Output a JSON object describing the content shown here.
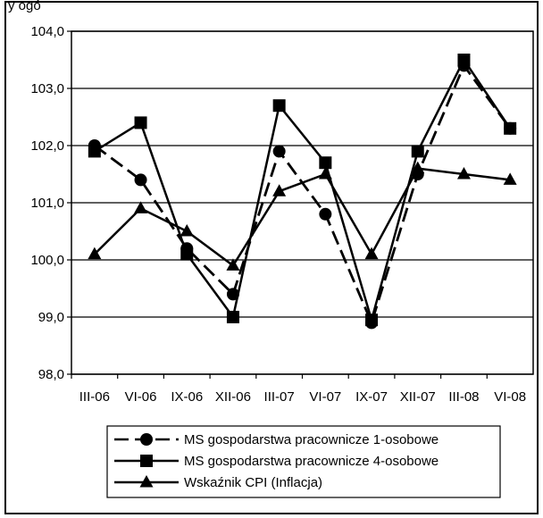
{
  "chart_data": {
    "type": "line",
    "title": "y ogó",
    "categories": [
      "III-06",
      "VI-06",
      "IX-06",
      "XII-06",
      "III-07",
      "VI-07",
      "IX-07",
      "XII-07",
      "III-08",
      "VI-08"
    ],
    "ylim": [
      98.0,
      104.0
    ],
    "yticks": [
      "98,0",
      "99,0",
      "100,0",
      "101,0",
      "102,0",
      "103,0",
      "104,0"
    ],
    "grid": true,
    "legend_position": "bottom",
    "series": [
      {
        "name": "MS gospodarstwa pracownicze 1-osobowe",
        "marker": "circle",
        "line_style": "dashed",
        "values": [
          102.0,
          101.4,
          100.2,
          99.4,
          101.9,
          100.8,
          98.9,
          101.5,
          103.4,
          102.3
        ]
      },
      {
        "name": "MS gospodarstwa pracownicze 4-osobowe",
        "marker": "square",
        "line_style": "solid",
        "values": [
          101.9,
          102.4,
          100.1,
          99.0,
          102.7,
          101.7,
          98.95,
          101.9,
          103.5,
          102.3
        ]
      },
      {
        "name": "Wskaźnik CPI (Inflacja)",
        "marker": "triangle",
        "line_style": "solid",
        "values": [
          100.1,
          100.9,
          100.5,
          99.9,
          101.2,
          101.5,
          100.1,
          101.6,
          101.5,
          101.4
        ]
      }
    ]
  }
}
